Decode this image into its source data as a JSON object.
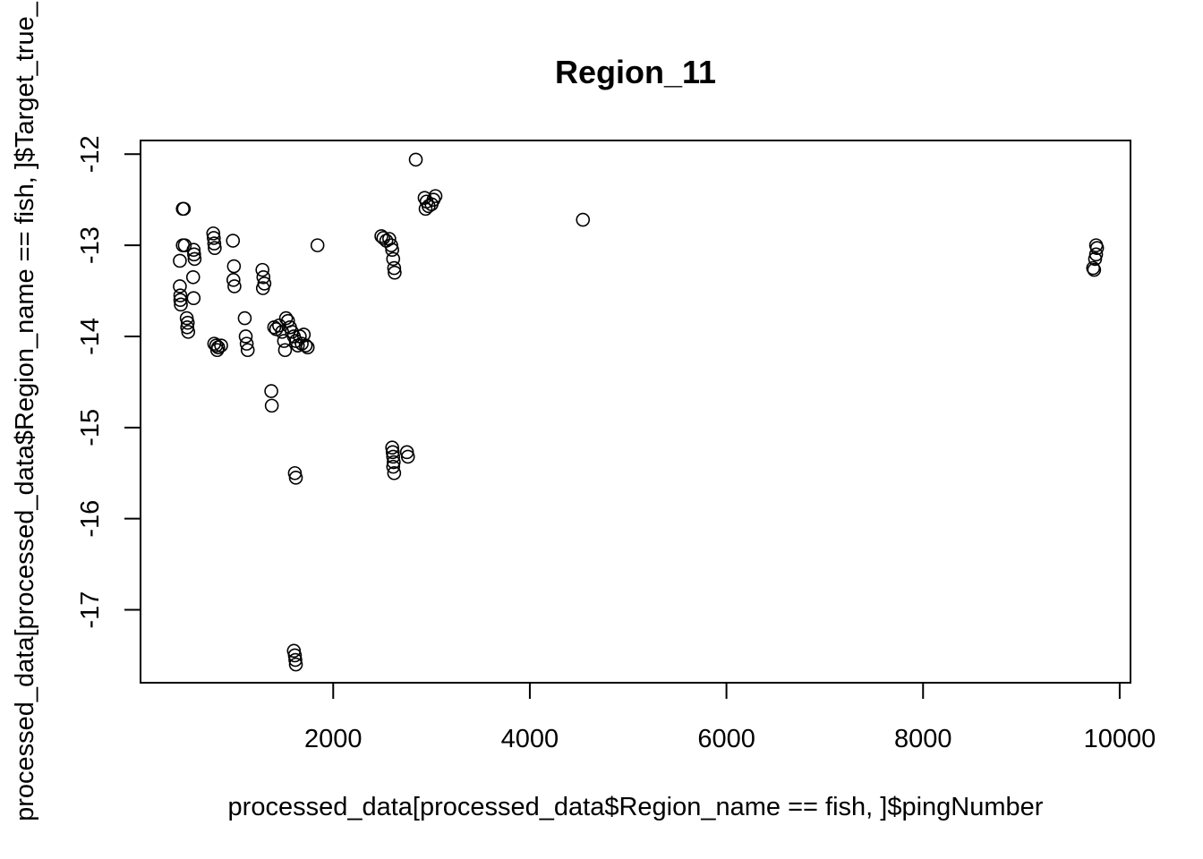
{
  "chart_data": {
    "type": "scatter",
    "title": "Region_11",
    "xlabel": "processed_data[processed_data$Region_name == fish, ]$pingNumber",
    "ylabel": "processed_data[processed_data$Region_name == fish, ]$Target_true_",
    "xlim": [
      40,
      10110
    ],
    "ylim": [
      -17.8,
      -11.85
    ],
    "x_ticks": [
      2000,
      4000,
      6000,
      8000,
      10000
    ],
    "y_ticks": [
      -12,
      -13,
      -14,
      -15,
      -16,
      -17
    ],
    "x_tick_labels": [
      "2000",
      "4000",
      "6000",
      "8000",
      "10000"
    ],
    "y_tick_labels": [
      "-12",
      "-13",
      "-14",
      "-15",
      "-16",
      "-17"
    ],
    "grid": false,
    "legend": "none",
    "marker": "open-circle",
    "points": [
      [
        440,
        -13.17
      ],
      [
        440,
        -13.45
      ],
      [
        445,
        -13.55
      ],
      [
        445,
        -13.6
      ],
      [
        450,
        -13.65
      ],
      [
        470,
        -12.6
      ],
      [
        480,
        -12.6
      ],
      [
        470,
        -13.0
      ],
      [
        490,
        -13.0
      ],
      [
        510,
        -13.8
      ],
      [
        520,
        -13.85
      ],
      [
        515,
        -13.9
      ],
      [
        525,
        -13.95
      ],
      [
        580,
        -13.05
      ],
      [
        585,
        -13.1
      ],
      [
        590,
        -13.15
      ],
      [
        575,
        -13.35
      ],
      [
        580,
        -13.58
      ],
      [
        780,
        -12.87
      ],
      [
        785,
        -12.92
      ],
      [
        790,
        -12.98
      ],
      [
        795,
        -13.03
      ],
      [
        790,
        -14.08
      ],
      [
        810,
        -14.1
      ],
      [
        830,
        -14.12
      ],
      [
        820,
        -14.15
      ],
      [
        860,
        -14.1
      ],
      [
        980,
        -12.95
      ],
      [
        990,
        -13.23
      ],
      [
        985,
        -13.38
      ],
      [
        995,
        -13.45
      ],
      [
        1100,
        -13.8
      ],
      [
        1110,
        -14.0
      ],
      [
        1120,
        -14.08
      ],
      [
        1130,
        -14.15
      ],
      [
        1280,
        -13.27
      ],
      [
        1290,
        -13.35
      ],
      [
        1300,
        -13.42
      ],
      [
        1285,
        -13.47
      ],
      [
        1370,
        -14.6
      ],
      [
        1375,
        -14.76
      ],
      [
        1400,
        -13.9
      ],
      [
        1420,
        -13.92
      ],
      [
        1450,
        -13.88
      ],
      [
        1480,
        -13.95
      ],
      [
        1500,
        -14.05
      ],
      [
        1510,
        -14.15
      ],
      [
        1520,
        -13.8
      ],
      [
        1540,
        -13.83
      ],
      [
        1560,
        -13.9
      ],
      [
        1580,
        -13.95
      ],
      [
        1600,
        -14.0
      ],
      [
        1620,
        -14.05
      ],
      [
        1640,
        -14.1
      ],
      [
        1660,
        -14.0
      ],
      [
        1680,
        -14.08
      ],
      [
        1700,
        -13.98
      ],
      [
        1720,
        -14.1
      ],
      [
        1740,
        -14.12
      ],
      [
        1610,
        -15.5
      ],
      [
        1620,
        -15.55
      ],
      [
        1600,
        -17.45
      ],
      [
        1610,
        -17.5
      ],
      [
        1615,
        -17.55
      ],
      [
        1620,
        -17.6
      ],
      [
        1840,
        -13.0
      ],
      [
        2490,
        -12.9
      ],
      [
        2510,
        -12.92
      ],
      [
        2540,
        -12.95
      ],
      [
        2570,
        -12.93
      ],
      [
        2590,
        -13.0
      ],
      [
        2600,
        -13.05
      ],
      [
        2610,
        -13.15
      ],
      [
        2620,
        -13.25
      ],
      [
        2625,
        -13.3
      ],
      [
        2600,
        -15.22
      ],
      [
        2605,
        -15.27
      ],
      [
        2610,
        -15.32
      ],
      [
        2615,
        -15.38
      ],
      [
        2610,
        -15.43
      ],
      [
        2620,
        -15.5
      ],
      [
        2750,
        -15.27
      ],
      [
        2760,
        -15.32
      ],
      [
        2840,
        -12.06
      ],
      [
        2930,
        -12.48
      ],
      [
        2950,
        -12.52
      ],
      [
        2970,
        -12.57
      ],
      [
        3000,
        -12.55
      ],
      [
        3020,
        -12.5
      ],
      [
        2940,
        -12.6
      ],
      [
        3040,
        -12.46
      ],
      [
        4540,
        -12.72
      ],
      [
        9730,
        -13.25
      ],
      [
        9740,
        -13.27
      ],
      [
        9750,
        -13.15
      ],
      [
        9760,
        -13.1
      ],
      [
        9770,
        -13.03
      ],
      [
        9760,
        -13.0
      ]
    ]
  }
}
